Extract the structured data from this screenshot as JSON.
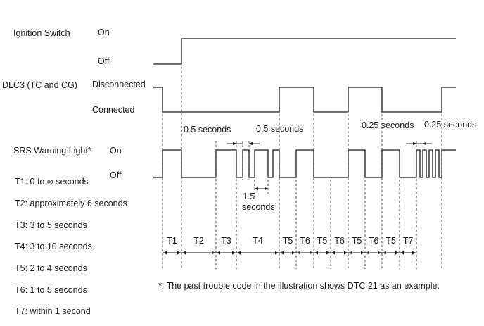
{
  "signals": {
    "ignition": {
      "name": "Ignition Switch",
      "high": "On",
      "low": "Off"
    },
    "dlc3": {
      "name": "DLC3 (TC and CG)",
      "high": "Disconnected",
      "low": "Connected"
    },
    "srs": {
      "name": "SRS Warning Light*",
      "high": "On",
      "low": "Off"
    }
  },
  "timings": {
    "t1": "T1: 0 to ∞ seconds",
    "t2": "T2: approximately 6 seconds",
    "t3": "T3: 3 to 5 seconds",
    "t4": "T4: 3 to 10 seconds",
    "t5": "T5: 2 to 4 seconds",
    "t6": "T6: 1 to 5 seconds",
    "t7": "T7: within 1 second"
  },
  "annotations": {
    "half_second_1": "0.5 seconds",
    "half_second_2": "0.5 seconds",
    "quarter_second_1": "0.25 seconds",
    "quarter_second_2": "0.25 seconds",
    "one_point_five": "1.5",
    "seconds_word": "seconds"
  },
  "intervals": [
    "T1",
    "T2",
    "T3",
    "T4",
    "T5",
    "T6",
    "T5",
    "T6",
    "T5",
    "T6",
    "T5",
    "T7"
  ],
  "footnote": "*: The past trouble code in the illustration shows DTC 21 as an example."
}
